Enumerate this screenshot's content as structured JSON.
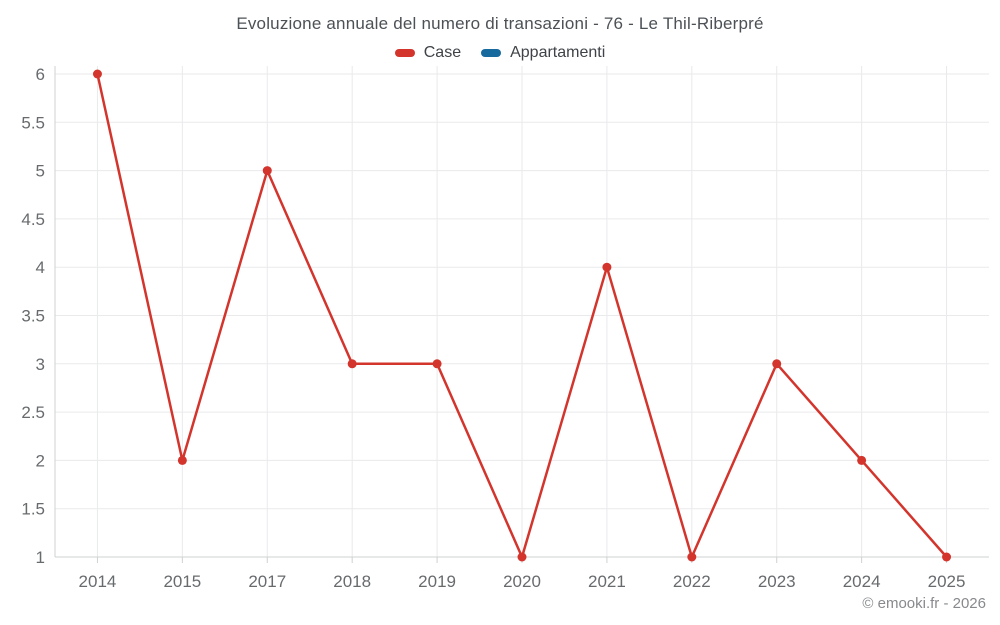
{
  "title": "Evoluzione annuale del numero di transazioni - 76 - Le Thil-Riberpré",
  "legend": [
    {
      "label": "Case",
      "color": "#d3352d"
    },
    {
      "label": "Appartamenti",
      "color": "#176a9e"
    }
  ],
  "footer": "© emooki.fr - 2026",
  "colors": {
    "background": "#ffffff",
    "title_text": "#4c5156",
    "legend_text": "#3f4347",
    "axis_label_text": "#686b6e",
    "gridline": "#e9eaeb",
    "axis_line": "#cfd1d2",
    "footer_text": "#87898c"
  },
  "chart_data": {
    "type": "line",
    "title": "Evoluzione annuale del numero di transazioni - 76 - Le Thil-Riberpré",
    "categories": [
      "2014",
      "2015",
      "2017",
      "2018",
      "2019",
      "2020",
      "2021",
      "2022",
      "2023",
      "2024",
      "2025"
    ],
    "series": [
      {
        "name": "Case",
        "color": "#d3352d",
        "values": [
          6,
          2,
          5,
          3,
          3,
          1,
          4,
          1,
          3,
          2,
          1
        ]
      },
      {
        "name": "Appartamenti",
        "color": "#176a9e",
        "values": []
      }
    ],
    "xlabel": "",
    "ylabel": "",
    "ylim": [
      1,
      6
    ],
    "ytick_step": 0.5,
    "grid": true,
    "legend_position": "top-center",
    "marker_radius": 4.5,
    "line_width": 2.5
  }
}
